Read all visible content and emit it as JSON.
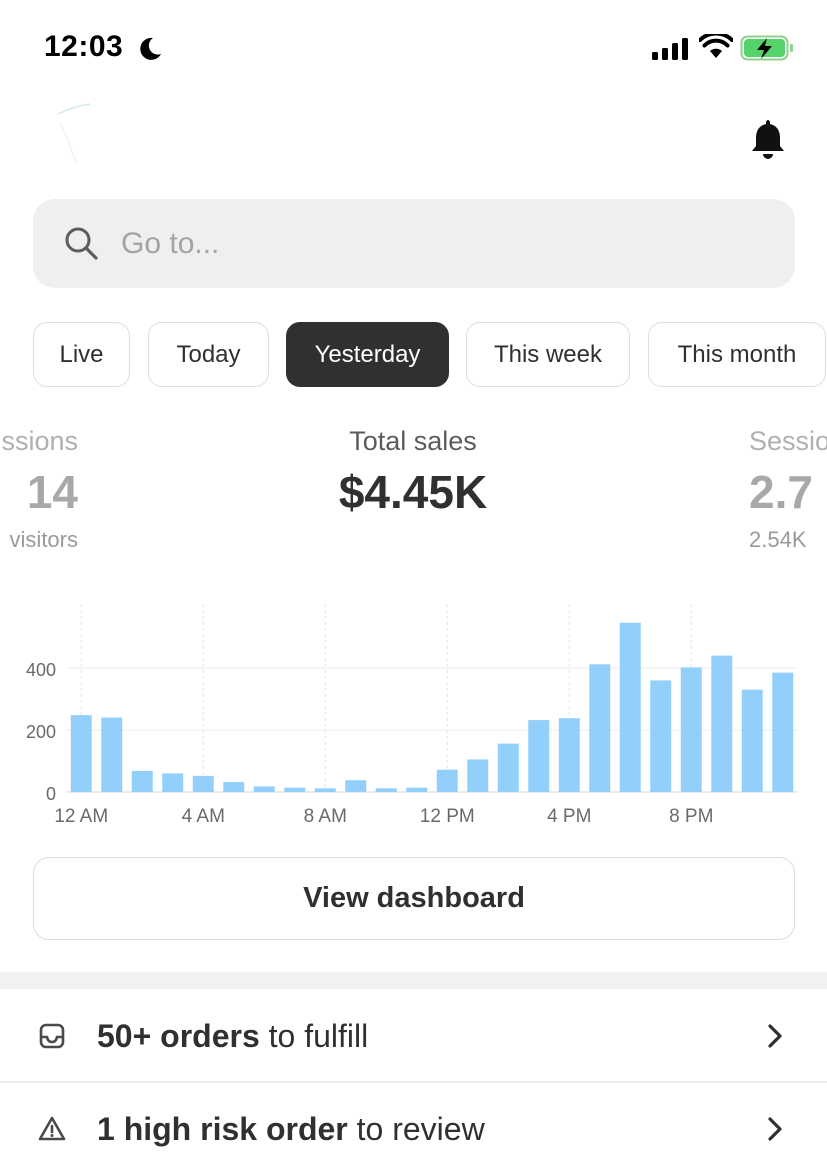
{
  "status_bar": {
    "time": "12:03"
  },
  "search": {
    "placeholder": "Go to..."
  },
  "tabs": [
    {
      "label": "Live"
    },
    {
      "label": "Today"
    },
    {
      "label": "Yesterday",
      "active": true
    },
    {
      "label": "This week"
    },
    {
      "label": "This month"
    }
  ],
  "metrics": {
    "left": {
      "label": "ssions",
      "value": "14",
      "sub": "visitors"
    },
    "center": {
      "label": "Total sales",
      "value": "$4.45K"
    },
    "right": {
      "label": "Sessio",
      "value": "2.7",
      "sub": "2.54K"
    }
  },
  "chart_data": {
    "type": "bar",
    "x": [
      "12 AM",
      "1 AM",
      "2 AM",
      "3 AM",
      "4 AM",
      "5 AM",
      "6 AM",
      "7 AM",
      "8 AM",
      "9 AM",
      "10 AM",
      "11 AM",
      "12 PM",
      "1 PM",
      "2 PM",
      "3 PM",
      "4 PM",
      "5 PM",
      "6 PM",
      "7 PM",
      "8 PM",
      "9 PM",
      "10 PM",
      "11 PM"
    ],
    "values": [
      248,
      240,
      68,
      60,
      52,
      32,
      18,
      14,
      12,
      38,
      12,
      14,
      72,
      105,
      156,
      232,
      238,
      412,
      546,
      360,
      402,
      440,
      330,
      385
    ],
    "tick_labels": [
      "12 AM",
      "4 AM",
      "8 AM",
      "12 PM",
      "4 PM",
      "8 PM"
    ],
    "y_ticks": [
      "0",
      "200",
      "400"
    ],
    "ylim": [
      0,
      600
    ],
    "bar_color": "#92d0fb"
  },
  "dashboard_button": {
    "label": "View dashboard"
  },
  "tasks": [
    {
      "bold": "50+ orders",
      "rest": " to fulfill",
      "icon": "inbox-icon"
    },
    {
      "bold": "1 high risk order",
      "rest": " to review",
      "icon": "warning-icon"
    }
  ]
}
